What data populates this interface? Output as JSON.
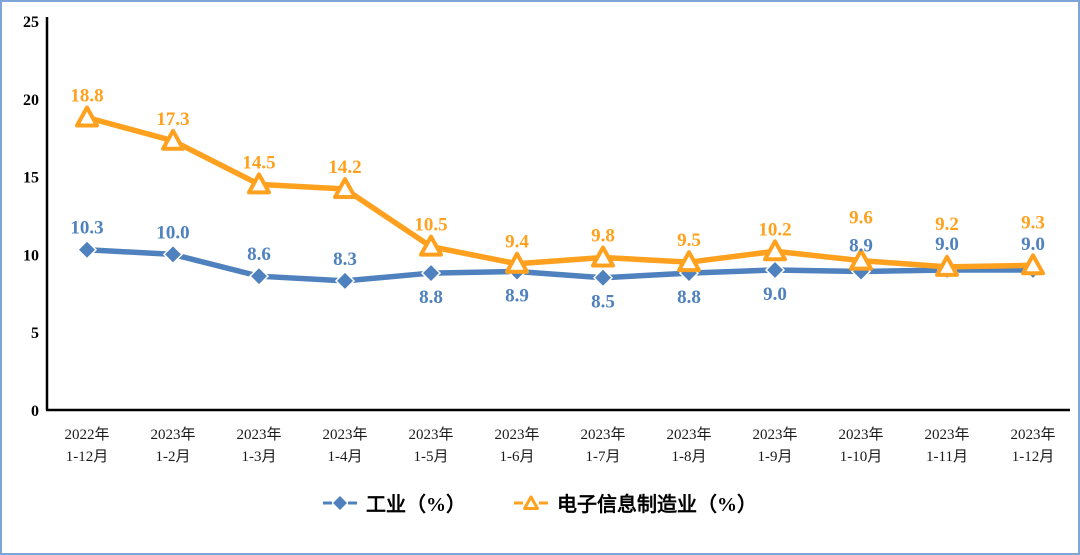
{
  "frame": {
    "border_color": "#7EA5D8",
    "background_color": "#FFFFFF",
    "axis_color": "#000000"
  },
  "chart_data": {
    "type": "line",
    "categories": [
      [
        "2022年",
        "1-12月"
      ],
      [
        "2023年",
        "1-2月"
      ],
      [
        "2023年",
        "1-3月"
      ],
      [
        "2023年",
        "1-4月"
      ],
      [
        "2023年",
        "1-5月"
      ],
      [
        "2023年",
        "1-6月"
      ],
      [
        "2023年",
        "1-7月"
      ],
      [
        "2023年",
        "1-8月"
      ],
      [
        "2023年",
        "1-9月"
      ],
      [
        "2023年",
        "1-10月"
      ],
      [
        "2023年",
        "1-11月"
      ],
      [
        "2023年",
        "1-12月"
      ]
    ],
    "ylim": [
      0,
      25
    ],
    "yticks": [
      0,
      5,
      10,
      15,
      20,
      25
    ],
    "grid": false,
    "legend_position": "bottom",
    "series": [
      {
        "name": "工业（%）",
        "color": "#4E81BD",
        "marker": "diamond",
        "values": [
          10.3,
          10.0,
          8.6,
          8.3,
          8.8,
          8.9,
          8.5,
          8.8,
          9.0,
          8.9,
          9.0,
          9.0
        ],
        "label_positions": [
          "above",
          "above",
          "above",
          "above",
          "below",
          "below",
          "below",
          "below",
          "below",
          "stack2",
          "stack2",
          "stack2"
        ]
      },
      {
        "name": "电子信息制造业（%）",
        "color": "#FFA11E",
        "marker": "triangle-open",
        "values": [
          18.8,
          17.3,
          14.5,
          14.2,
          10.5,
          9.4,
          9.8,
          9.5,
          10.2,
          9.6,
          9.2,
          9.3
        ],
        "label_positions": [
          "above",
          "above",
          "above",
          "above",
          "above",
          "above",
          "above",
          "above",
          "above",
          "stack1",
          "stack1",
          "stack1"
        ]
      }
    ]
  }
}
